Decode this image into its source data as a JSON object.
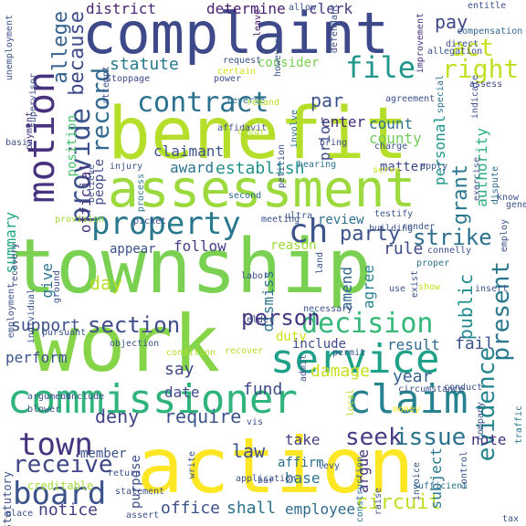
{
  "words": [
    {
      "text": "benefit",
      "color": "#b5de2b"
    },
    {
      "text": "township",
      "color": "#7ad151"
    },
    {
      "text": "complaint",
      "color": "#3e4989"
    },
    {
      "text": "work",
      "color": "#86d549"
    },
    {
      "text": "action",
      "color": "#fde725"
    },
    {
      "text": "assessment",
      "color": "#9bd93c"
    },
    {
      "text": "commissioner",
      "color": "#2fb47c"
    },
    {
      "text": "claim",
      "color": "#26828e"
    },
    {
      "text": "service",
      "color": "#1fa088"
    },
    {
      "text": "decision",
      "color": "#35b779"
    },
    {
      "text": "motion",
      "color": "#46327e"
    },
    {
      "text": "provide",
      "color": "#3b528b"
    },
    {
      "text": "because",
      "color": "#3e4a89"
    },
    {
      "text": "record",
      "color": "#31688e"
    },
    {
      "text": "contract",
      "color": "#2c728e"
    },
    {
      "text": "file",
      "color": "#1f988b"
    },
    {
      "text": "right",
      "color": "#c2df23"
    },
    {
      "text": "act",
      "color": "#c8e020"
    },
    {
      "text": "property",
      "color": "#2a788e"
    },
    {
      "text": "strike",
      "color": "#2d708e"
    },
    {
      "text": "evidence",
      "color": "#25858e"
    },
    {
      "text": "ch",
      "color": "#3b528b"
    },
    {
      "text": "board",
      "color": "#3b528b"
    },
    {
      "text": "town",
      "color": "#463480"
    },
    {
      "text": "receive",
      "color": "#3f4788"
    },
    {
      "text": "seek",
      "color": "#433e85"
    },
    {
      "text": "issue",
      "color": "#2c728e"
    },
    {
      "text": "section",
      "color": "#3e4c8a"
    },
    {
      "text": "person",
      "color": "#453581"
    },
    {
      "text": "party",
      "color": "#3b528b"
    },
    {
      "text": "present",
      "color": "#2a788e"
    },
    {
      "text": "allege",
      "color": "#35608d"
    },
    {
      "text": "district",
      "color": "#482475"
    },
    {
      "text": "determine",
      "color": "#481f70"
    },
    {
      "text": "clerk",
      "color": "#443983"
    },
    {
      "text": "pay",
      "color": "#3f4788"
    },
    {
      "text": "statute",
      "color": "#2a788e"
    },
    {
      "text": "consider",
      "color": "#7ad151"
    },
    {
      "text": "par",
      "color": "#3b528b"
    },
    {
      "text": "enter",
      "color": "#482878"
    },
    {
      "text": "count",
      "color": "#2c728e"
    },
    {
      "text": "county",
      "color": "#6ece58"
    },
    {
      "text": "personal",
      "color": "#1f968b"
    },
    {
      "text": "grant",
      "color": "#2a788e"
    },
    {
      "text": "authority",
      "color": "#29af7f"
    },
    {
      "text": "prior",
      "color": "#3d4d8a"
    },
    {
      "text": "matter",
      "color": "#3e4989"
    },
    {
      "text": "establish",
      "color": "#21918c"
    },
    {
      "text": "award",
      "color": "#2c728e"
    },
    {
      "text": "claimant",
      "color": "#3b528b"
    },
    {
      "text": "position",
      "color": "#4ac16d"
    },
    {
      "text": "official",
      "color": "#46307e"
    },
    {
      "text": "people",
      "color": "#3e4a89"
    },
    {
      "text": "summary",
      "color": "#21a685"
    },
    {
      "text": "follow",
      "color": "#433d84"
    },
    {
      "text": "appear",
      "color": "#3b528b"
    },
    {
      "text": "give",
      "color": "#2b748e"
    },
    {
      "text": "support",
      "color": "#3c4f8a"
    },
    {
      "text": "day",
      "color": "#b5de2b"
    },
    {
      "text": "review",
      "color": "#2d708e"
    },
    {
      "text": "rule",
      "color": "#3e4a89"
    },
    {
      "text": "reason",
      "color": "#a0da39"
    },
    {
      "text": "dismiss",
      "color": "#2c728e"
    },
    {
      "text": "amend",
      "color": "#31688e"
    },
    {
      "text": "agree",
      "color": "#26828e"
    },
    {
      "text": "public",
      "color": "#228c8d"
    },
    {
      "text": "fail",
      "color": "#3b528b"
    },
    {
      "text": "duty",
      "color": "#d0e11c"
    },
    {
      "text": "include",
      "color": "#3e4c8a"
    },
    {
      "text": "result",
      "color": "#31688e"
    },
    {
      "text": "perform",
      "color": "#3b528b"
    },
    {
      "text": "say",
      "color": "#3f4889"
    },
    {
      "text": "damage",
      "color": "#c8e020"
    },
    {
      "text": "year",
      "color": "#35608d"
    },
    {
      "text": "fund",
      "color": "#3e4989"
    },
    {
      "text": "date",
      "color": "#3e4989"
    },
    {
      "text": "deny",
      "color": "#404588"
    },
    {
      "text": "require",
      "color": "#3b528b"
    },
    {
      "text": "take",
      "color": "#423f85"
    },
    {
      "text": "argue",
      "color": "#46337f"
    },
    {
      "text": "law",
      "color": "#3b528b"
    },
    {
      "text": "affirm",
      "color": "#2e6f8e"
    },
    {
      "text": "base",
      "color": "#2c738e"
    },
    {
      "text": "notice",
      "color": "#433e85"
    },
    {
      "text": "office",
      "color": "#3b528b"
    },
    {
      "text": "shall",
      "color": "#2c728e"
    },
    {
      "text": "employee",
      "color": "#2f6b8e"
    },
    {
      "text": "circuit",
      "color": "#bddf26"
    },
    {
      "text": "subject",
      "color": "#2a788e"
    },
    {
      "text": "note",
      "color": "#462f7e"
    },
    {
      "text": "member",
      "color": "#3b528b"
    },
    {
      "text": "creditable",
      "color": "#a5db36"
    },
    {
      "text": "purpose",
      "color": "#3d4e8a"
    },
    {
      "text": "statutory",
      "color": "#3b528b"
    },
    {
      "text": "leave",
      "color": "#481a6c"
    },
    {
      "text": "stoppage",
      "color": "#3e4989"
    },
    {
      "text": "power",
      "color": "#3b528b"
    },
    {
      "text": "unemployment",
      "color": "#3b528b"
    },
    {
      "text": "improvement",
      "color": "#46317e"
    },
    {
      "text": "compensation",
      "color": "#31688e"
    },
    {
      "text": "request",
      "color": "#3b528b"
    },
    {
      "text": "certain",
      "color": "#d5e21a"
    },
    {
      "text": "reverse",
      "color": "#2d708e"
    },
    {
      "text": "remand",
      "color": "#b8de29"
    },
    {
      "text": "agreement",
      "color": "#3b528b"
    },
    {
      "text": "basis",
      "color": "#3b528b"
    },
    {
      "text": "payment",
      "color": "#46327e"
    },
    {
      "text": "employment",
      "color": "#3b528b"
    },
    {
      "text": "recovery",
      "color": "#3e4989"
    },
    {
      "text": "entitle",
      "color": "#3b528b"
    },
    {
      "text": "allegation",
      "color": "#3b528b"
    },
    {
      "text": "assess",
      "color": "#3e4989"
    },
    {
      "text": "special",
      "color": "#2c728e"
    },
    {
      "text": "indicate",
      "color": "#3b528b"
    },
    {
      "text": "apply",
      "color": "#3b528b"
    },
    {
      "text": "exercise",
      "color": "#3b528b"
    },
    {
      "text": "dispute",
      "color": "#2c728e"
    },
    {
      "text": "bring",
      "color": "#3b528b"
    },
    {
      "text": "charge",
      "color": "#3b528b"
    },
    {
      "text": "serve",
      "color": "#d0e11c"
    },
    {
      "text": "hearing",
      "color": "#2c728e"
    },
    {
      "text": "petition",
      "color": "#3b528b"
    },
    {
      "text": "believe",
      "color": "#3b528b"
    },
    {
      "text": "injury",
      "color": "#3b528b"
    },
    {
      "text": "process",
      "color": "#2c728e"
    },
    {
      "text": "second",
      "color": "#31688e"
    },
    {
      "text": "meeting",
      "color": "#3b528b"
    },
    {
      "text": "ultra",
      "color": "#3b528b"
    },
    {
      "text": "testify",
      "color": "#3b528b"
    },
    {
      "text": "building",
      "color": "#3b528b"
    },
    {
      "text": "render",
      "color": "#3b528b"
    },
    {
      "text": "connelly",
      "color": "#3b528b"
    },
    {
      "text": "proper",
      "color": "#2c728e"
    },
    {
      "text": "exist",
      "color": "#3b528b"
    },
    {
      "text": "show",
      "color": "#c8e020"
    },
    {
      "text": "use",
      "color": "#3b528b"
    },
    {
      "text": "land",
      "color": "#3b528b"
    },
    {
      "text": "necessary",
      "color": "#3b528b"
    },
    {
      "text": "labor",
      "color": "#3b528b"
    },
    {
      "text": "picket",
      "color": "#3b528b"
    },
    {
      "text": "provision",
      "color": "#a0da39"
    },
    {
      "text": "ground",
      "color": "#3b528b"
    },
    {
      "text": "individual",
      "color": "#3b528b"
    },
    {
      "text": "pursuant",
      "color": "#3b528b"
    },
    {
      "text": "argument",
      "color": "#3b528b"
    },
    {
      "text": "conclude",
      "color": "#3b528b"
    },
    {
      "text": "blower",
      "color": "#3b528b"
    },
    {
      "text": "condition",
      "color": "#b5de2b"
    },
    {
      "text": "recover",
      "color": "#b5de2b"
    },
    {
      "text": "permit",
      "color": "#3b528b"
    },
    {
      "text": "admit",
      "color": "#3b528b"
    },
    {
      "text": "elder",
      "color": "#3b528b"
    },
    {
      "text": "objection",
      "color": "#3b528b"
    },
    {
      "text": "circumstance",
      "color": "#3b528b"
    },
    {
      "text": "local",
      "color": "#b5de2b"
    },
    {
      "text": "money",
      "color": "#fde725"
    },
    {
      "text": "conduct",
      "color": "#3b528b"
    },
    {
      "text": "company",
      "color": "#3b528b"
    },
    {
      "text": "control",
      "color": "#3b528b"
    },
    {
      "text": "construction",
      "color": "#2c728e"
    },
    {
      "text": "invoice",
      "color": "#3b528b"
    },
    {
      "text": "sufficient",
      "color": "#2c728e"
    },
    {
      "text": "raise",
      "color": "#3b528b"
    },
    {
      "text": "levy",
      "color": "#3b528b"
    },
    {
      "text": "vis",
      "color": "#3b528b"
    },
    {
      "text": "return",
      "color": "#3b528b"
    },
    {
      "text": "write",
      "color": "#3b528b"
    },
    {
      "text": "application",
      "color": "#3b528b"
    },
    {
      "text": "statement",
      "color": "#3b528b"
    },
    {
      "text": "assert",
      "color": "#3b528b"
    },
    {
      "text": "place",
      "color": "#3b528b"
    },
    {
      "text": "tax",
      "color": "#3b528b"
    },
    {
      "text": "know",
      "color": "#3b528b"
    },
    {
      "text": "employ",
      "color": "#3b528b"
    },
    {
      "text": "insert",
      "color": "#3b528b"
    },
    {
      "text": "traffic",
      "color": "#2c728e"
    },
    {
      "text": "supervisor",
      "color": "#3b528b"
    },
    {
      "text": "affidavit",
      "color": "#3b528b"
    },
    {
      "text": "clear",
      "color": "#b5de2b"
    },
    {
      "text": "involve",
      "color": "#2c728e"
    },
    {
      "text": "attempt",
      "color": "#3b528b"
    },
    {
      "text": "however",
      "color": "#3b528b"
    },
    {
      "text": "defendant",
      "color": "#3b528b"
    },
    {
      "text": "allow",
      "color": "#3b528b"
    },
    {
      "text": "direct",
      "color": "#3b528b"
    },
    {
      "text": "general",
      "color": "#3b528b"
    },
    {
      "text": "bar",
      "color": "#3b528b"
    },
    {
      "text": "accord",
      "color": "#3b528b"
    }
  ]
}
